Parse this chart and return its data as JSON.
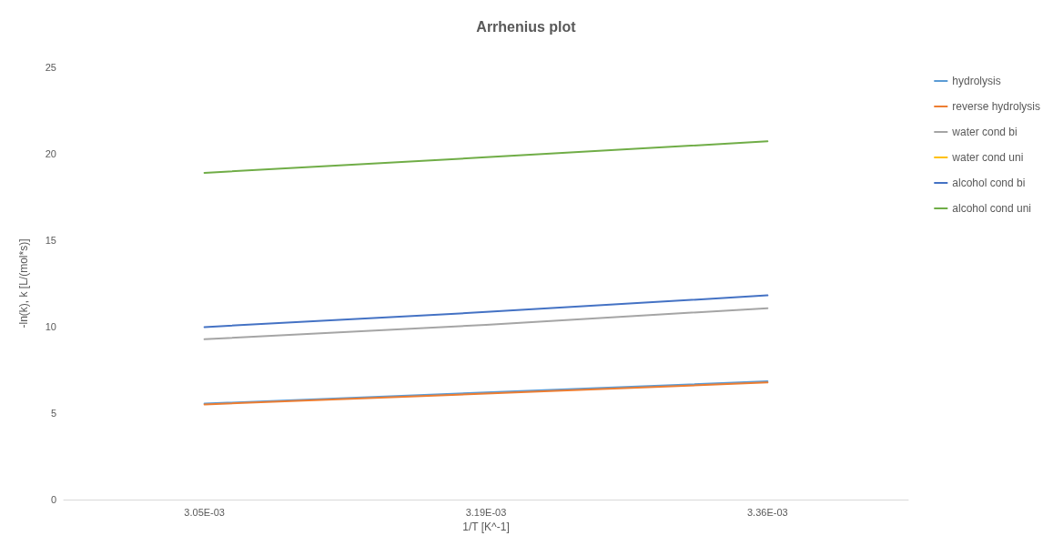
{
  "chart_data": {
    "type": "line",
    "title": "Arrhenius plot",
    "xlabel": "1/T [K^-1]",
    "ylabel": "-ln(k), k [L/(mol*s)]",
    "categories": [
      "3.05E-03",
      "3.19E-03",
      "3.36E-03"
    ],
    "series": [
      {
        "name": "hydrolysis",
        "color": "#5b9bd5",
        "values": [
          5.55,
          6.2,
          6.84
        ]
      },
      {
        "name": "reverse hydrolysis",
        "color": "#ed7d31",
        "values": [
          5.5,
          6.13,
          6.77
        ]
      },
      {
        "name": "water cond bi",
        "color": "#a5a5a5",
        "values": [
          9.27,
          10.11,
          11.07
        ]
      },
      {
        "name": "water cond uni",
        "color": "#ffc000",
        "values": [
          null,
          null,
          null
        ]
      },
      {
        "name": "alcohol cond bi",
        "color": "#4472c4",
        "values": [
          9.98,
          10.85,
          11.81
        ]
      },
      {
        "name": "alcohol cond uni",
        "color": "#70ad47",
        "values": [
          18.9,
          19.8,
          20.72
        ]
      }
    ],
    "ylim": [
      0,
      25
    ],
    "yticks": [
      0,
      5,
      10,
      15,
      20,
      25
    ],
    "grid": false,
    "legend": "right",
    "marker": "none",
    "line_style": "solid"
  }
}
